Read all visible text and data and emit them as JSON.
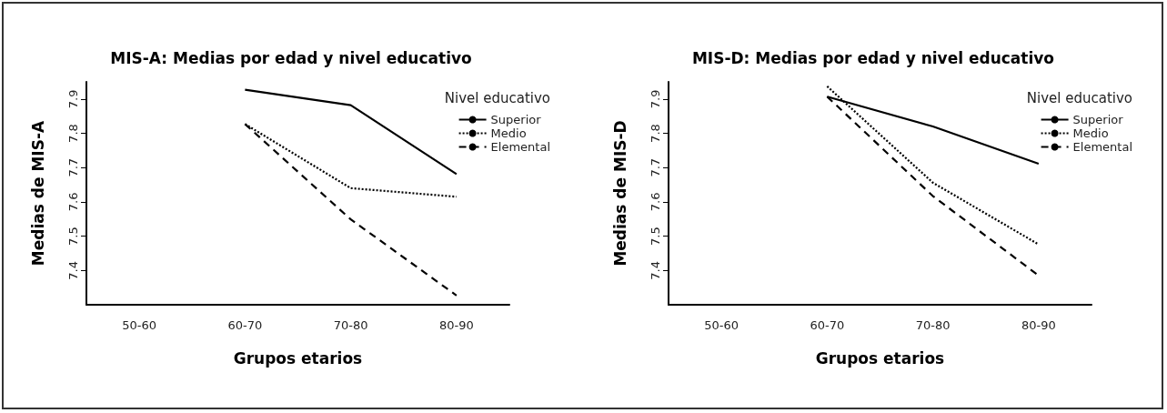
{
  "chart_data": [
    {
      "type": "line",
      "title": "MIS-A: Medias por edad y nivel educativo",
      "xlabel": "Grupos etarios",
      "ylabel": "Medias de MIS-A",
      "legend_title": "Nivel educativo",
      "categories": [
        "50-60",
        "60-70",
        "70-80",
        "80-90"
      ],
      "series": [
        {
          "name": "Superior",
          "color": "#000000",
          "line_style": "solid",
          "values": [
            null,
            7.927,
            7.882,
            7.681
          ]
        },
        {
          "name": "Medio",
          "color": "#000000",
          "line_style": "dotted",
          "values": [
            null,
            7.827,
            7.64,
            7.615
          ]
        },
        {
          "name": "Elemental",
          "color": "#000000",
          "line_style": "dashed",
          "values": [
            null,
            7.827,
            7.549,
            7.327
          ]
        }
      ],
      "ylim": [
        7.3,
        7.95
      ],
      "yticks": [
        7.4,
        7.5,
        7.6,
        7.7,
        7.8,
        7.9
      ],
      "grid": false,
      "legend": "top right",
      "marker": "none"
    },
    {
      "type": "line",
      "title": "MIS-D: Medias por edad y nivel educativo",
      "xlabel": "Grupos etarios",
      "ylabel": "Medias de MIS-D",
      "legend_title": "Nivel educativo",
      "categories": [
        "50-60",
        "60-70",
        "70-80",
        "80-90"
      ],
      "series": [
        {
          "name": "Superior",
          "color": "#000000",
          "line_style": "solid",
          "values": [
            null,
            7.907,
            7.82,
            7.711
          ]
        },
        {
          "name": "Medio",
          "color": "#000000",
          "line_style": "dotted",
          "values": [
            null,
            7.937,
            7.656,
            7.476
          ]
        },
        {
          "name": "Elemental",
          "color": "#000000",
          "line_style": "dashed",
          "values": [
            null,
            7.907,
            7.617,
            7.385
          ]
        }
      ],
      "ylim": [
        7.3,
        7.95
      ],
      "yticks": [
        7.4,
        7.5,
        7.6,
        7.7,
        7.8,
        7.9
      ],
      "grid": false,
      "legend": "top right",
      "marker": "none"
    }
  ]
}
